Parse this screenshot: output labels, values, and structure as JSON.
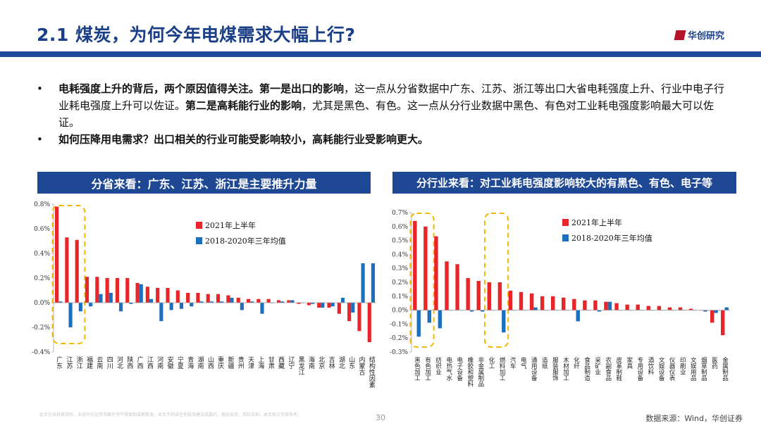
{
  "header": {
    "title": "2.1 煤炭，为何今年电煤需求大幅上行?",
    "logo_text": "华创研究"
  },
  "bullets": [
    {
      "segments": [
        {
          "text": "电耗强度上升的背后，两个原因值得关注。第一是出口的影响",
          "bold": true
        },
        {
          "text": "，这一点从分省数据中广东、江苏、浙江等出口大省电耗强度上升、行业中电子行业耗电强度上升可以佐证。",
          "bold": false
        },
        {
          "text": "第二是高耗能行业的影响",
          "bold": true
        },
        {
          "text": "，尤其是黑色、有色。这一点从分行业数据中黑色、有色对工业耗电强度影响最大可以佐证。",
          "bold": false
        }
      ]
    },
    {
      "segments": [
        {
          "text": "如何压降用电需求？出口相关的行业可能受影响较小，高耗能行业受影响更大。",
          "bold": true
        }
      ]
    }
  ],
  "left_panel": {
    "heading": "分省来看：广东、江苏、浙江是主要推升力量"
  },
  "right_panel": {
    "heading": "分行业来看：对工业耗电强度影响较大的有黑色、有色、电子等"
  },
  "footer": {
    "source": "数据来源：Wind，华创证券",
    "page_number": "30",
    "disclaimer": "此页包含机密资料，未经华创证券书面许可不得复制或再散发。本页不构成任何投资建议或要约，据此投资，风险自担。本页观点仅供参考。"
  },
  "colors": {
    "red": "#e8262a",
    "blue": "#1f6fbf",
    "highlight": "#f0b800"
  },
  "chart_data": [
    {
      "type": "bar",
      "title": "分省来看：广东、江苏、浙江是主要推升力量",
      "categories": [
        "广东",
        "江苏",
        "浙江",
        "福建",
        "云南",
        "四川",
        "河北",
        "陕西",
        "广西",
        "江西",
        "河南",
        "安徽",
        "宁夏",
        "青海",
        "湖南",
        "山西",
        "重庆",
        "新疆",
        "贵州",
        "天津",
        "上海",
        "甘肃",
        "西藏",
        "辽宁",
        "黑龙江",
        "海南",
        "北京",
        "吉林",
        "湖北",
        "山东",
        "内蒙古",
        "结构性因素"
      ],
      "series": [
        {
          "name": "2021年上半年",
          "values": [
            0.78,
            0.53,
            0.51,
            0.21,
            0.21,
            0.2,
            0.2,
            0.2,
            0.16,
            0.13,
            0.12,
            0.12,
            0.1,
            0.08,
            0.08,
            0.07,
            0.07,
            0.06,
            0.04,
            0.03,
            0.03,
            0.03,
            0.02,
            0.02,
            -0.01,
            -0.02,
            -0.04,
            -0.04,
            -0.09,
            -0.15,
            -0.23,
            -0.32
          ]
        },
        {
          "name": "2018-2020年三年均值",
          "values": [
            0.01,
            -0.2,
            -0.07,
            -0.03,
            0.07,
            0.08,
            -0.07,
            -0.01,
            0.15,
            0.03,
            -0.15,
            -0.06,
            -0.05,
            -0.03,
            0.01,
            0.01,
            0.01,
            0.04,
            -0.06,
            0.01,
            -0.09,
            0.0,
            0.01,
            0.02,
            0.0,
            -0.01,
            -0.04,
            -0.03,
            0.04,
            -0.08,
            0.32,
            0.32
          ]
        }
      ],
      "ylim": [
        -0.4,
        0.8
      ],
      "yticks": [
        "-0.4%",
        "-0.2%",
        "0.0%",
        "0.2%",
        "0.4%",
        "0.6%",
        "0.8%"
      ],
      "legend": "top-center",
      "highlight_range": [
        0,
        2
      ]
    },
    {
      "type": "bar",
      "title": "分行业来看：对工业耗电强度影响较大的有黑色、有色、电子等",
      "categories": [
        "黑色加工",
        "有色加工",
        "纺织业",
        "电热气水",
        "电子设备",
        "橡胶和塑料",
        "非金属制品",
        "化工",
        "燃料加工",
        "汽车",
        "电气",
        "通用设备",
        "造纸",
        "服装服饰",
        "木材加工",
        "化纤",
        "食品制造",
        "采矿业",
        "农副食品",
        "皮革制鞋",
        "家具",
        "专用设备",
        "酒饮料",
        "文娱设备",
        "仪器仪表",
        "印刷业",
        "文娱用品",
        "烟草制品",
        "医药",
        "金属制品"
      ],
      "series": [
        {
          "name": "2021年上半年",
          "values": [
            0.64,
            0.6,
            0.53,
            0.35,
            0.33,
            0.23,
            0.21,
            0.2,
            0.2,
            0.14,
            0.13,
            0.12,
            0.1,
            0.1,
            0.09,
            0.08,
            0.07,
            0.07,
            0.06,
            0.05,
            0.04,
            0.04,
            0.03,
            0.03,
            0.02,
            0.02,
            0.01,
            0.0,
            -0.09,
            -0.18
          ]
        },
        {
          "name": "2018-2020年三年均值",
          "values": [
            -0.19,
            -0.09,
            -0.13,
            0.0,
            0.0,
            -0.01,
            -0.01,
            0.0,
            -0.16,
            0.0,
            0.0,
            0.02,
            0.0,
            0.0,
            0.0,
            -0.08,
            0.0,
            -0.01,
            0.06,
            0.0,
            0.0,
            0.0,
            0.0,
            0.0,
            0.0,
            0.0,
            0.0,
            -0.01,
            -0.02,
            0.02
          ]
        }
      ],
      "ylim": [
        -0.3,
        0.7
      ],
      "yticks": [
        "-0.3%",
        "-0.2%",
        "-0.1%",
        "0.0%",
        "0.1%",
        "0.2%",
        "0.3%",
        "0.4%",
        "0.5%",
        "0.6%",
        "0.7%"
      ],
      "legend": "top-center",
      "highlight_ranges": [
        [
          0,
          1
        ],
        [
          7,
          8
        ]
      ]
    }
  ]
}
